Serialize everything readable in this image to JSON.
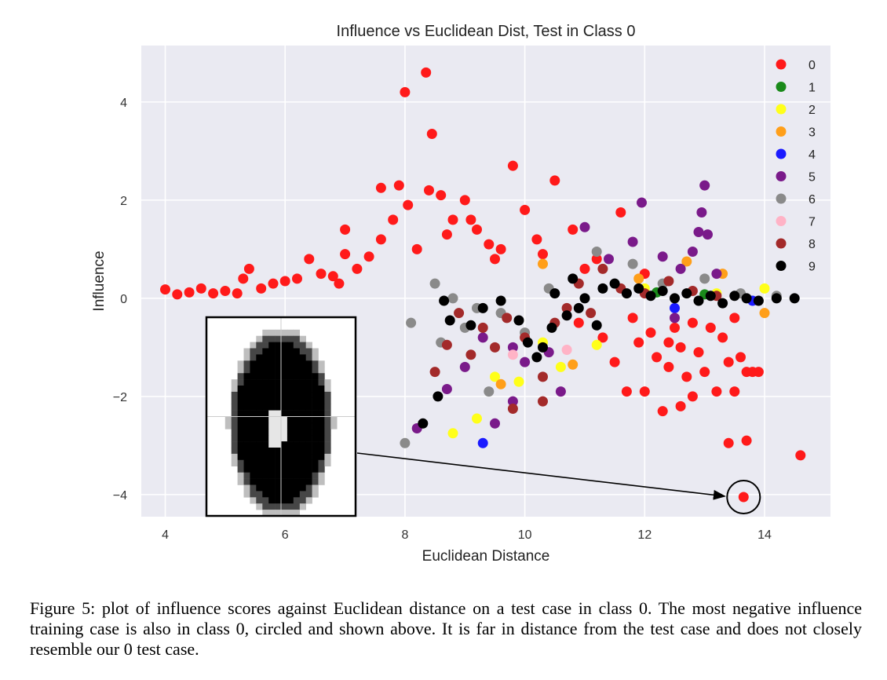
{
  "chart_data": {
    "type": "scatter",
    "title": "Influence vs Euclidean Dist, Test in Class 0",
    "xlabel": "Euclidean Distance",
    "ylabel": "Influence",
    "xlim": [
      3.6,
      15.1
    ],
    "ylim": [
      -4.45,
      5.15
    ],
    "xticks": [
      4,
      6,
      8,
      10,
      12,
      14
    ],
    "yticks": [
      -4,
      -2,
      0,
      2,
      4
    ],
    "xtick_labels": [
      "4",
      "6",
      "8",
      "10",
      "12",
      "14"
    ],
    "ytick_labels": [
      "−4",
      "−2",
      "0",
      "2",
      "4"
    ],
    "grid": true,
    "legend_position": "top-right",
    "series": [
      {
        "name": "0",
        "color": "#ff1a1a",
        "points": [
          [
            4.0,
            0.18
          ],
          [
            4.2,
            0.08
          ],
          [
            4.4,
            0.12
          ],
          [
            4.6,
            0.2
          ],
          [
            4.8,
            0.1
          ],
          [
            5.0,
            0.15
          ],
          [
            5.2,
            0.1
          ],
          [
            5.3,
            0.4
          ],
          [
            5.4,
            0.6
          ],
          [
            5.6,
            0.2
          ],
          [
            5.8,
            0.3
          ],
          [
            6.0,
            0.35
          ],
          [
            6.2,
            0.4
          ],
          [
            6.4,
            0.8
          ],
          [
            6.6,
            0.5
          ],
          [
            6.8,
            0.45
          ],
          [
            7.0,
            0.9
          ],
          [
            7.2,
            0.6
          ],
          [
            7.4,
            0.85
          ],
          [
            7.6,
            1.2
          ],
          [
            7.8,
            1.6
          ],
          [
            8.0,
            4.2
          ],
          [
            8.05,
            1.9
          ],
          [
            8.2,
            1.0
          ],
          [
            8.35,
            4.6
          ],
          [
            8.45,
            3.35
          ],
          [
            8.4,
            2.2
          ],
          [
            8.6,
            2.1
          ],
          [
            8.8,
            1.6
          ],
          [
            9.0,
            2.0
          ],
          [
            9.2,
            1.4
          ],
          [
            9.4,
            1.1
          ],
          [
            9.6,
            1.0
          ],
          [
            9.8,
            2.7
          ],
          [
            10.0,
            1.8
          ],
          [
            10.2,
            1.2
          ],
          [
            10.5,
            2.4
          ],
          [
            10.8,
            1.4
          ],
          [
            11.2,
            0.8
          ],
          [
            11.6,
            1.75
          ],
          [
            7.0,
            1.4
          ],
          [
            6.9,
            0.3
          ],
          [
            7.6,
            2.25
          ],
          [
            7.9,
            2.3
          ],
          [
            8.7,
            1.3
          ],
          [
            9.1,
            1.6
          ],
          [
            9.5,
            0.8
          ],
          [
            10.3,
            0.9
          ],
          [
            11.0,
            0.6
          ],
          [
            12.0,
            0.5
          ],
          [
            10.9,
            -0.5
          ],
          [
            11.3,
            -0.8
          ],
          [
            11.5,
            -1.3
          ],
          [
            11.7,
            -1.9
          ],
          [
            11.9,
            -0.9
          ],
          [
            12.0,
            -1.9
          ],
          [
            12.2,
            -1.2
          ],
          [
            12.3,
            -2.3
          ],
          [
            12.4,
            -1.4
          ],
          [
            12.5,
            -0.6
          ],
          [
            12.6,
            -2.2
          ],
          [
            12.7,
            -1.6
          ],
          [
            12.8,
            -2.0
          ],
          [
            12.9,
            -1.1
          ],
          [
            13.0,
            -1.5
          ],
          [
            13.2,
            -1.9
          ],
          [
            13.3,
            -0.8
          ],
          [
            13.4,
            -1.3
          ],
          [
            13.5,
            -1.9
          ],
          [
            13.6,
            -1.2
          ],
          [
            13.7,
            -1.5
          ],
          [
            13.8,
            -1.5
          ],
          [
            13.9,
            -1.5
          ],
          [
            13.4,
            -2.95
          ],
          [
            13.7,
            -2.9
          ],
          [
            14.6,
            -3.2
          ],
          [
            13.65,
            -4.05
          ],
          [
            12.6,
            -1.0
          ],
          [
            12.1,
            -0.7
          ],
          [
            12.8,
            -0.5
          ],
          [
            13.1,
            -0.6
          ],
          [
            11.8,
            -0.4
          ],
          [
            12.4,
            -0.9
          ],
          [
            13.5,
            -0.4
          ]
        ]
      },
      {
        "name": "1",
        "color": "#1a8a1a",
        "points": [
          [
            12.2,
            0.12
          ],
          [
            13.0,
            0.08
          ]
        ]
      },
      {
        "name": "2",
        "color": "#ffff1a",
        "points": [
          [
            8.8,
            -2.75
          ],
          [
            9.2,
            -2.45
          ],
          [
            9.5,
            -1.6
          ],
          [
            9.9,
            -1.7
          ],
          [
            10.3,
            -0.9
          ],
          [
            10.6,
            -1.4
          ],
          [
            11.2,
            -0.95
          ],
          [
            12.0,
            0.2
          ],
          [
            13.2,
            0.1
          ],
          [
            14.0,
            0.2
          ]
        ]
      },
      {
        "name": "3",
        "color": "#ff9f1a",
        "points": [
          [
            9.6,
            -1.75
          ],
          [
            10.3,
            0.7
          ],
          [
            10.8,
            -1.35
          ],
          [
            11.9,
            0.4
          ],
          [
            12.7,
            0.75
          ],
          [
            13.3,
            0.5
          ],
          [
            14.0,
            -0.3
          ]
        ]
      },
      {
        "name": "4",
        "color": "#1a1aff",
        "points": [
          [
            9.3,
            -2.95
          ],
          [
            12.5,
            -0.2
          ],
          [
            13.8,
            -0.05
          ]
        ]
      },
      {
        "name": "5",
        "color": "#7a1a8a",
        "points": [
          [
            8.2,
            -2.65
          ],
          [
            8.7,
            -1.85
          ],
          [
            9.0,
            -1.4
          ],
          [
            9.5,
            -2.55
          ],
          [
            9.8,
            -2.1
          ],
          [
            10.0,
            -1.3
          ],
          [
            10.6,
            -1.9
          ],
          [
            11.0,
            1.45
          ],
          [
            11.4,
            0.8
          ],
          [
            11.8,
            1.15
          ],
          [
            11.95,
            1.95
          ],
          [
            12.3,
            0.85
          ],
          [
            12.6,
            0.6
          ],
          [
            12.8,
            0.95
          ],
          [
            12.9,
            1.35
          ],
          [
            12.95,
            1.75
          ],
          [
            13.0,
            2.3
          ],
          [
            13.05,
            1.3
          ],
          [
            13.2,
            0.5
          ],
          [
            12.5,
            -0.4
          ],
          [
            9.3,
            -0.8
          ],
          [
            9.8,
            -1.0
          ],
          [
            10.4,
            -1.1
          ]
        ]
      },
      {
        "name": "6",
        "color": "#8a8a8a",
        "points": [
          [
            8.0,
            -2.95
          ],
          [
            8.1,
            -0.5
          ],
          [
            8.5,
            0.3
          ],
          [
            8.6,
            -0.9
          ],
          [
            8.8,
            0.0
          ],
          [
            9.0,
            -0.6
          ],
          [
            9.2,
            -0.2
          ],
          [
            9.4,
            -1.9
          ],
          [
            9.6,
            -0.3
          ],
          [
            10.0,
            -0.7
          ],
          [
            10.4,
            0.2
          ],
          [
            11.2,
            0.95
          ],
          [
            11.8,
            0.7
          ],
          [
            12.3,
            0.3
          ],
          [
            13.0,
            0.4
          ],
          [
            13.6,
            0.1
          ],
          [
            14.2,
            0.05
          ]
        ]
      },
      {
        "name": "7",
        "color": "#ffb3c6",
        "points": [
          [
            9.8,
            -1.15
          ],
          [
            10.7,
            -1.05
          ]
        ]
      },
      {
        "name": "8",
        "color": "#a32a2a",
        "points": [
          [
            8.5,
            -1.5
          ],
          [
            8.7,
            -0.95
          ],
          [
            8.9,
            -0.3
          ],
          [
            9.1,
            -1.15
          ],
          [
            9.3,
            -0.6
          ],
          [
            9.5,
            -1.0
          ],
          [
            9.7,
            -0.4
          ],
          [
            9.8,
            -2.25
          ],
          [
            10.0,
            -0.8
          ],
          [
            10.3,
            -1.6
          ],
          [
            10.3,
            -2.1
          ],
          [
            10.5,
            -0.5
          ],
          [
            10.7,
            -0.2
          ],
          [
            10.9,
            0.3
          ],
          [
            11.1,
            -0.3
          ],
          [
            11.3,
            0.6
          ],
          [
            11.6,
            0.2
          ],
          [
            12.0,
            0.1
          ],
          [
            12.4,
            0.35
          ],
          [
            12.8,
            0.15
          ],
          [
            13.2,
            0.05
          ]
        ]
      },
      {
        "name": "9",
        "color": "#000000",
        "points": [
          [
            8.3,
            -2.55
          ],
          [
            8.55,
            -2.0
          ],
          [
            8.65,
            -0.05
          ],
          [
            8.75,
            -0.45
          ],
          [
            9.1,
            -0.55
          ],
          [
            9.3,
            -0.2
          ],
          [
            9.6,
            -0.05
          ],
          [
            9.9,
            -0.45
          ],
          [
            10.05,
            -0.9
          ],
          [
            10.2,
            -1.2
          ],
          [
            10.3,
            -1.0
          ],
          [
            10.45,
            -0.6
          ],
          [
            10.5,
            0.1
          ],
          [
            10.7,
            -0.35
          ],
          [
            10.8,
            0.4
          ],
          [
            10.9,
            -0.2
          ],
          [
            11.0,
            0.0
          ],
          [
            11.2,
            -0.55
          ],
          [
            11.3,
            0.2
          ],
          [
            11.5,
            0.3
          ],
          [
            11.7,
            0.1
          ],
          [
            11.9,
            0.2
          ],
          [
            12.1,
            0.05
          ],
          [
            12.3,
            0.15
          ],
          [
            12.5,
            0.0
          ],
          [
            12.7,
            0.1
          ],
          [
            12.9,
            -0.05
          ],
          [
            13.1,
            0.05
          ],
          [
            13.3,
            -0.1
          ],
          [
            13.5,
            0.05
          ],
          [
            13.7,
            0.0
          ],
          [
            13.9,
            -0.05
          ],
          [
            14.2,
            0.0
          ],
          [
            14.5,
            0.0
          ]
        ]
      }
    ],
    "annotation": {
      "target": [
        13.65,
        -4.05
      ],
      "note": "circled most negative influence point"
    }
  },
  "caption": "Figure 5: plot of influence scores against Euclidean distance on a test case in class 0. The most negative influence training case is also in class 0, circled and shown above. It is far in distance from the test case and does not closely resemble our 0 test case."
}
